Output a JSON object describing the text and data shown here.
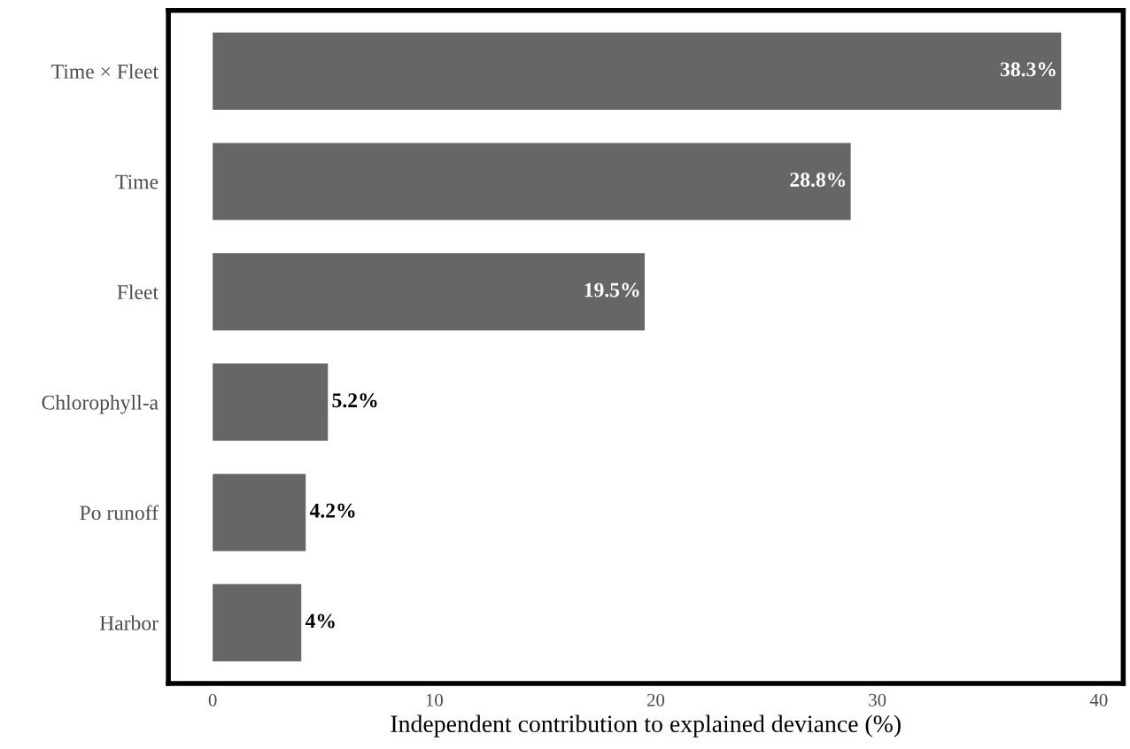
{
  "chart_data": {
    "type": "bar",
    "orientation": "horizontal",
    "xlabel": "Independent contribution to explained deviance (%)",
    "categories": [
      "Time × Fleet",
      "Time",
      "Fleet",
      "Chlorophyll-a",
      "Po runoff",
      "Harbor"
    ],
    "values": [
      38.3,
      28.8,
      19.5,
      5.2,
      4.2,
      4
    ],
    "value_labels": [
      "38.3%",
      "28.8%",
      "19.5%",
      "5.2%",
      "4.2%",
      "4%"
    ],
    "color": "#666666",
    "xlim": [
      -2,
      41.1
    ],
    "xticks": [
      0,
      10,
      20,
      30,
      40
    ],
    "grid": false
  }
}
